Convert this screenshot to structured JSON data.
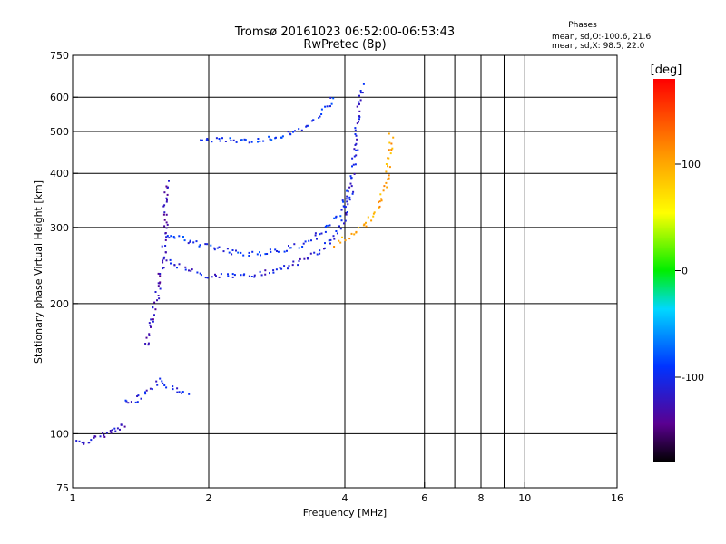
{
  "chart_data": {
    "type": "scatter",
    "title": "Tromsø 20161023 06:52:00-06:53:43",
    "subtitle": "RwPretec (8p)",
    "xlabel": "Frequency [MHz]",
    "ylabel": "Stationary phase Virtual Height [km]",
    "x_scale": "log",
    "y_scale": "log",
    "xlim": [
      1,
      16
    ],
    "ylim": [
      75,
      750
    ],
    "x_ticks": [
      1,
      2,
      4,
      6,
      8,
      10,
      16
    ],
    "x_tick_labels": [
      "1",
      "2",
      "4",
      "6",
      "8",
      "10",
      "16"
    ],
    "x_grid": [
      2,
      4,
      6,
      7,
      8,
      9,
      10
    ],
    "y_ticks": [
      75,
      100,
      200,
      300,
      400,
      500,
      600,
      750
    ],
    "y_tick_labels": [
      "75",
      "100",
      "200",
      "300",
      "400",
      "500",
      "600",
      "750"
    ],
    "y_grid": [
      100,
      200,
      300,
      400,
      500,
      600
    ],
    "grid": true,
    "legend": {
      "title": "Phases",
      "line_o": "mean, sd,O:-100.6, 21.6",
      "line_x": "mean, sd,X:  98.5, 22.0"
    },
    "colorbar": {
      "label": "[deg]",
      "range": [
        -180,
        180
      ],
      "ticks": [
        100,
        0,
        -100
      ],
      "tick_labels": [
        "100",
        "0",
        "-100"
      ]
    },
    "traces": [
      {
        "role": "E-layer O-mode",
        "phase": -120,
        "points": [
          [
            1.01,
            96
          ],
          [
            1.05,
            96
          ],
          [
            1.08,
            97
          ],
          [
            1.12,
            99
          ],
          [
            1.18,
            100
          ],
          [
            1.22,
            102
          ],
          [
            1.26,
            104
          ],
          [
            1.3,
            106
          ]
        ]
      },
      {
        "role": "Es echoes",
        "phase": -110,
        "points": [
          [
            1.3,
            118
          ],
          [
            1.36,
            120
          ],
          [
            1.42,
            122
          ],
          [
            1.48,
            128
          ],
          [
            1.55,
            133
          ],
          [
            1.62,
            130
          ],
          [
            1.72,
            126
          ],
          [
            1.8,
            124
          ]
        ]
      },
      {
        "role": "F1 rising",
        "phase": -125,
        "points": [
          [
            1.45,
            160
          ],
          [
            1.48,
            180
          ],
          [
            1.52,
            200
          ],
          [
            1.55,
            225
          ],
          [
            1.58,
            260
          ],
          [
            1.6,
            300
          ],
          [
            1.6,
            350
          ],
          [
            1.62,
            390
          ]
        ]
      },
      {
        "role": "F2 O-mode lower",
        "phase": -110,
        "points": [
          [
            1.6,
            255
          ],
          [
            1.8,
            240
          ],
          [
            2.0,
            232
          ],
          [
            2.3,
            232
          ],
          [
            2.6,
            236
          ],
          [
            2.9,
            243
          ],
          [
            3.2,
            252
          ],
          [
            3.5,
            265
          ],
          [
            3.8,
            290
          ],
          [
            4.0,
            320
          ],
          [
            4.1,
            360
          ],
          [
            4.15,
            400
          ],
          [
            4.2,
            450
          ],
          [
            4.25,
            520
          ],
          [
            4.3,
            600
          ],
          [
            4.35,
            650
          ]
        ]
      },
      {
        "role": "F2 O-mode upper",
        "phase": -95,
        "points": [
          [
            1.6,
            290
          ],
          [
            1.9,
            275
          ],
          [
            2.2,
            265
          ],
          [
            2.5,
            262
          ],
          [
            2.8,
            265
          ],
          [
            3.1,
            272
          ],
          [
            3.4,
            285
          ],
          [
            3.7,
            305
          ],
          [
            3.95,
            335
          ],
          [
            4.05,
            375
          ]
        ]
      },
      {
        "role": "F2 X-mode",
        "phase": 100,
        "points": [
          [
            3.8,
            275
          ],
          [
            4.0,
            285
          ],
          [
            4.2,
            295
          ],
          [
            4.4,
            305
          ],
          [
            4.6,
            320
          ],
          [
            4.75,
            340
          ],
          [
            4.85,
            365
          ],
          [
            4.95,
            400
          ],
          [
            5.0,
            450
          ],
          [
            5.05,
            500
          ]
        ]
      },
      {
        "role": "F2 oblique spread",
        "phase": -95,
        "points": [
          [
            1.9,
            485
          ],
          [
            2.0,
            480
          ],
          [
            2.6,
            480
          ],
          [
            2.9,
            490
          ],
          [
            3.2,
            510
          ],
          [
            3.5,
            550
          ],
          [
            3.8,
            610
          ]
        ]
      }
    ]
  }
}
